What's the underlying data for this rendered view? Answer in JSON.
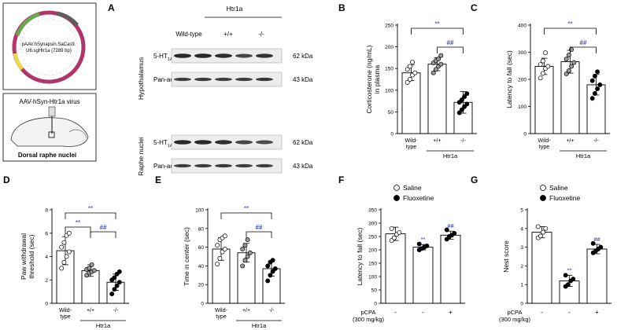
{
  "colors": {
    "sig_star": "#6f73e8",
    "sig_hash": "#3e49cc",
    "open_fill": "#ffffff",
    "grey_fill": "#9a9a9a",
    "black_fill": "#000000"
  },
  "schematic": {
    "plasmid_label_1": "pAAV.hSynapsin.SaCas9.",
    "plasmid_label_2": "U6.sgHtr1a (7289 bp)",
    "virus_label": "AAV-hSyn-Htr1a virus",
    "target_label": "Dorsal raphe nuclei"
  },
  "blot": {
    "letter": "A",
    "group_title": "Htr1a",
    "lane_headers": [
      "Wild-type",
      "+/+",
      "-/-"
    ],
    "region_1": "Hypothalamus",
    "region_2": "Raphe nuclei",
    "protein_1_base": "5-HT",
    "protein_1_sub": "1A",
    "protein_1_end": "R",
    "protein_2": "Pan-actin",
    "mw_1": "62 kDa",
    "mw_2": "43 kDa"
  },
  "chart_data": [
    {
      "panel": "B",
      "type": "bar",
      "ylabel_1": "Corticosterone (ng/mL)",
      "ylabel_2": "in plasma",
      "ylim": [
        0,
        250
      ],
      "yticks": [
        0,
        50,
        100,
        150,
        200,
        250
      ],
      "categories": [
        "Wild-type",
        "+/+",
        "-/-"
      ],
      "group_label": "Htr1a",
      "values": [
        140,
        160,
        72
      ],
      "errors": [
        18,
        15,
        25
      ],
      "fills": [
        "open",
        "grey",
        "black"
      ],
      "points": [
        [
          118,
          125,
          135,
          140,
          148,
          155,
          165
        ],
        [
          140,
          148,
          155,
          160,
          163,
          168,
          172,
          180
        ],
        [
          48,
          55,
          62,
          68,
          72,
          78,
          85,
          92
        ]
      ],
      "sig_top": "**",
      "sig_mid": "##"
    },
    {
      "panel": "C",
      "type": "bar",
      "ylabel_1": "Latency to fall (sec)",
      "ylim": [
        0,
        400
      ],
      "yticks": [
        0,
        100,
        200,
        300,
        400
      ],
      "categories": [
        "Wild-type",
        "+/+",
        "-/-"
      ],
      "group_label": "Htr1a",
      "values": [
        248,
        265,
        180
      ],
      "errors": [
        30,
        42,
        38
      ],
      "fills": [
        "open",
        "grey",
        "black"
      ],
      "points": [
        [
          205,
          222,
          240,
          248,
          255,
          268,
          298
        ],
        [
          220,
          232,
          248,
          262,
          275,
          290,
          310
        ],
        [
          130,
          148,
          165,
          180,
          195,
          212,
          228
        ]
      ],
      "sig_top": "**",
      "sig_mid": "##"
    },
    {
      "panel": "D",
      "type": "bar",
      "ylabel_1": "Paw withdrawal",
      "ylabel_2": "threshold (sec)",
      "ylim": [
        0,
        8
      ],
      "yticks": [
        0,
        2,
        4,
        6,
        8
      ],
      "categories": [
        "Wild-type",
        "+/+",
        "-/-"
      ],
      "group_label": "Htr1a",
      "values": [
        4.5,
        2.8,
        1.8
      ],
      "errors": [
        1.2,
        0.5,
        0.7
      ],
      "fills": [
        "open",
        "grey",
        "black"
      ],
      "points": [
        [
          3.0,
          3.5,
          4.0,
          4.4,
          4.8,
          5.2,
          5.8,
          6.0
        ],
        [
          2.4,
          2.6,
          2.7,
          2.8,
          2.9,
          3.0,
          3.3
        ],
        [
          0.8,
          1.2,
          1.5,
          1.8,
          2.0,
          2.2,
          2.5,
          2.7
        ]
      ],
      "sig_top": "**",
      "sig_left": "**",
      "sig_mid": "##"
    },
    {
      "panel": "E",
      "type": "bar",
      "ylabel_1": "Time in center (sec)",
      "ylim": [
        0,
        100
      ],
      "yticks": [
        0,
        20,
        40,
        60,
        80,
        100
      ],
      "categories": [
        "Wild-type",
        "+/+",
        "-/-"
      ],
      "group_label": "Htr1a",
      "values": [
        58,
        54,
        37
      ],
      "errors": [
        12,
        10,
        8
      ],
      "fills": [
        "open",
        "grey",
        "black"
      ],
      "points": [
        [
          42,
          48,
          55,
          58,
          62,
          68,
          70,
          72
        ],
        [
          40,
          46,
          50,
          54,
          58,
          62,
          68
        ],
        [
          24,
          30,
          34,
          37,
          40,
          44,
          46
        ]
      ],
      "sig_top": "**",
      "sig_mid": "##"
    },
    {
      "panel": "F",
      "type": "bar",
      "ylabel_1": "Latency to fall (sec)",
      "ylim": [
        0,
        350
      ],
      "yticks": [
        0,
        50,
        100,
        150,
        200,
        250,
        300,
        350
      ],
      "legend": [
        "Saline",
        "Fluoxetine"
      ],
      "pcpa_label_1": "pCPA",
      "pcpa_label_2": "(300 mg/kg)",
      "pcpa_marks": [
        "-",
        "-",
        "+"
      ],
      "values": [
        260,
        210,
        255
      ],
      "errors": [
        25,
        10,
        15
      ],
      "fills": [
        "open",
        "white",
        "white"
      ],
      "points": [
        [
          235,
          245,
          258,
          265,
          280
        ],
        [
          200,
          205,
          210,
          215,
          222
        ],
        [
          240,
          250,
          255,
          262,
          275
        ]
      ],
      "point_fills": [
        "open",
        "black",
        "black"
      ],
      "bar_sig": [
        "",
        "**",
        "##"
      ]
    },
    {
      "panel": "G",
      "type": "bar",
      "ylabel_1": "Nest score",
      "ylim": [
        0,
        5
      ],
      "yticks": [
        0,
        1,
        2,
        3,
        4,
        5
      ],
      "legend": [
        "Saline",
        "Fluoxetine"
      ],
      "pcpa_label_1": "pCPA",
      "pcpa_label_2": "(300 mg/kg)",
      "pcpa_marks": [
        "-",
        "-",
        "+"
      ],
      "values": [
        3.8,
        1.2,
        2.9
      ],
      "errors": [
        0.3,
        0.3,
        0.25
      ],
      "fills": [
        "open",
        "white",
        "white"
      ],
      "points": [
        [
          3.5,
          3.6,
          3.8,
          4.0,
          4.1
        ],
        [
          0.9,
          1.0,
          1.2,
          1.3,
          1.5
        ],
        [
          2.7,
          2.8,
          2.9,
          3.0,
          3.2
        ]
      ],
      "point_fills": [
        "open",
        "black",
        "black"
      ],
      "bar_sig": [
        "",
        "**",
        "##"
      ]
    }
  ]
}
